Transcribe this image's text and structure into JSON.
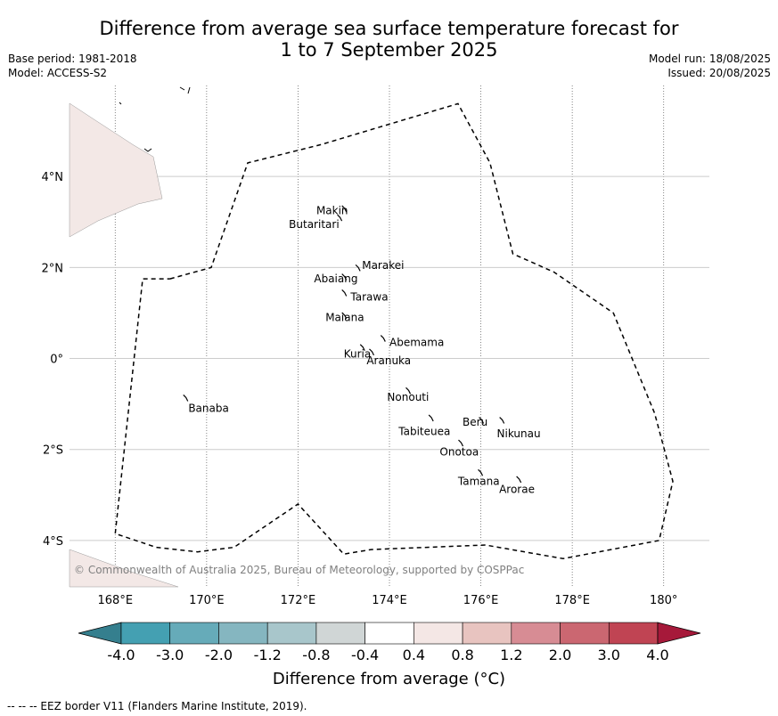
{
  "header": {
    "title_line1": "Difference from average sea surface temperature forecast for",
    "title_line2": "1 to 7 September 2025",
    "base_period": "Base period: 1981-2018",
    "model": "Model: ACCESS-S2",
    "model_run": "Model run: 18/08/2025",
    "issued": "Issued: 20/08/2025"
  },
  "map": {
    "lon_ticks": [
      {
        "value": 168,
        "label": "168°E"
      },
      {
        "value": 170,
        "label": "170°E"
      },
      {
        "value": 172,
        "label": "172°E"
      },
      {
        "value": 174,
        "label": "174°E"
      },
      {
        "value": 176,
        "label": "176°E"
      },
      {
        "value": 178,
        "label": "178°E"
      },
      {
        "value": 180,
        "label": "180°"
      }
    ],
    "lat_ticks": [
      {
        "value": 4,
        "label": "4°N"
      },
      {
        "value": 2,
        "label": "2°N"
      },
      {
        "value": 0,
        "label": "0°"
      },
      {
        "value": -2,
        "label": "2°S"
      },
      {
        "value": -4,
        "label": "4°S"
      }
    ],
    "extent": {
      "lon_min": 167.0,
      "lon_max": 181.0,
      "lat_min": -5.0,
      "lat_max": 6.0
    },
    "copyright": "© Commonwealth of Australia 2025, Bureau of Meteorology, supported by COSPPac",
    "eez_border": [
      [
        169.2,
        1.75
      ],
      [
        170.1,
        2.0
      ],
      [
        170.9,
        4.3
      ],
      [
        172.5,
        4.7
      ],
      [
        175.5,
        5.6
      ],
      [
        176.2,
        4.3
      ],
      [
        176.7,
        2.3
      ],
      [
        177.6,
        1.9
      ],
      [
        178.9,
        1.0
      ],
      [
        179.8,
        -1.2
      ],
      [
        180.2,
        -2.7
      ],
      [
        179.9,
        -4.0
      ],
      [
        177.8,
        -4.4
      ],
      [
        176.1,
        -4.1
      ],
      [
        173.6,
        -4.2
      ],
      [
        173.0,
        -4.3
      ],
      [
        172.0,
        -3.2
      ],
      [
        170.6,
        -4.15
      ],
      [
        169.8,
        -4.25
      ],
      [
        168.9,
        -4.15
      ],
      [
        168.0,
        -3.85
      ],
      [
        168.6,
        1.75
      ],
      [
        169.2,
        1.75
      ]
    ],
    "islands": [
      {
        "name": "Makin",
        "lon": 173.0,
        "lat": 3.3,
        "label_lon": 172.4,
        "label_lat": 3.25
      },
      {
        "name": "Butaritari",
        "lon": 172.9,
        "lat": 3.1,
        "label_lon": 171.8,
        "label_lat": 2.95
      },
      {
        "name": "Marakei",
        "lon": 173.3,
        "lat": 2.0,
        "label_lon": 173.4,
        "label_lat": 2.05
      },
      {
        "name": "Abaiang",
        "lon": 173.0,
        "lat": 1.8,
        "label_lon": 172.35,
        "label_lat": 1.75
      },
      {
        "name": "Tarawa",
        "lon": 173.0,
        "lat": 1.45,
        "label_lon": 173.15,
        "label_lat": 1.35
      },
      {
        "name": "Maiana",
        "lon": 173.0,
        "lat": 0.95,
        "label_lon": 172.6,
        "label_lat": 0.9
      },
      {
        "name": "Abemama",
        "lon": 173.85,
        "lat": 0.45,
        "label_lon": 174.0,
        "label_lat": 0.35
      },
      {
        "name": "Kuria",
        "lon": 173.4,
        "lat": 0.25,
        "label_lon": 173.0,
        "label_lat": 0.1
      },
      {
        "name": "Aranuka",
        "lon": 173.6,
        "lat": 0.15,
        "label_lon": 173.5,
        "label_lat": -0.05
      },
      {
        "name": "Nonouti",
        "lon": 174.4,
        "lat": -0.7,
        "label_lon": 173.95,
        "label_lat": -0.85
      },
      {
        "name": "Tabiteuea",
        "lon": 174.9,
        "lat": -1.3,
        "label_lon": 174.2,
        "label_lat": -1.6
      },
      {
        "name": "Beru",
        "lon": 176.0,
        "lat": -1.35,
        "label_lon": 175.6,
        "label_lat": -1.4
      },
      {
        "name": "Nikunau",
        "lon": 176.45,
        "lat": -1.35,
        "label_lon": 176.35,
        "label_lat": -1.65
      },
      {
        "name": "Onotoa",
        "lon": 175.55,
        "lat": -1.85,
        "label_lon": 175.1,
        "label_lat": -2.05
      },
      {
        "name": "Tamana",
        "lon": 175.98,
        "lat": -2.5,
        "label_lon": 175.5,
        "label_lat": -2.7
      },
      {
        "name": "Arorae",
        "lon": 176.82,
        "lat": -2.65,
        "label_lon": 176.4,
        "label_lat": -2.88
      },
      {
        "name": "Banaba",
        "lon": 169.53,
        "lat": -0.86,
        "label_lon": 169.6,
        "label_lat": -1.1
      }
    ]
  },
  "colorbar": {
    "ticks": [
      "-4.0",
      "-3.0",
      "-2.0",
      "-1.2",
      "-0.8",
      "-0.4",
      "0.4",
      "0.8",
      "1.2",
      "2.0",
      "3.0",
      "4.0"
    ],
    "under_color": "#357f8e",
    "over_color": "#a6193a",
    "bin_colors": [
      "#44a0b2",
      "#66abb9",
      "#85b6c0",
      "#a8c6cb",
      "#d0d6d6",
      "#ffffff",
      "#f4e7e5",
      "#e8c4c0",
      "#d78c94",
      "#cb6771",
      "#c04453"
    ],
    "title": "Difference from average (°C)"
  },
  "footnote": "--  --  -- EEZ border V11 (Flanders Marine Institute, 2019).",
  "colors": {
    "land": "#f3e8e6",
    "grid": "#cccccc"
  }
}
